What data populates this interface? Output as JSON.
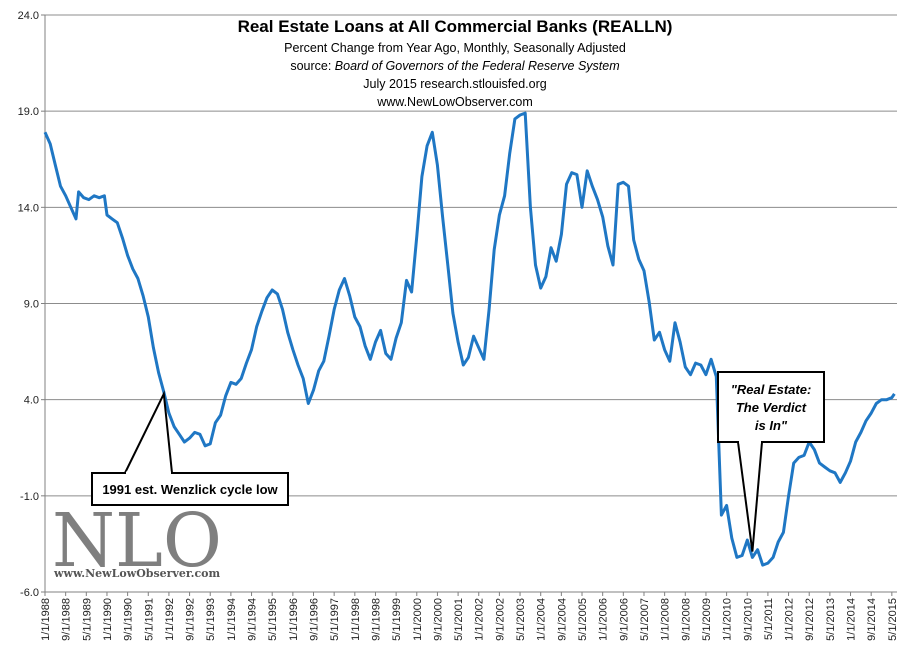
{
  "chart_data": {
    "type": "line",
    "title": "Real Estate Loans at All Commercial Banks (REALLN)",
    "subtitle_lines": [
      "Percent Change from Year Ago, Monthly, Seasonally Adjusted",
      "source: Board of Governors of the Federal Reserve System",
      "July 2015  research.stlouisfed.org",
      "www.NewLowObserver.com"
    ],
    "source_prefix": "source: ",
    "source_italic": "Board of Governors of the Federal Reserve System",
    "ylim": [
      -6.0,
      24.0
    ],
    "y_ticks": [
      "24.0",
      "19.0",
      "14.0",
      "9.0",
      "4.0",
      "-1.0",
      "-6.0"
    ],
    "x_ticks": [
      "1/1/1988",
      "9/1/1988",
      "5/1/1989",
      "1/1/1990",
      "9/1/1990",
      "5/1/1991",
      "1/1/1992",
      "9/1/1992",
      "5/1/1993",
      "1/1/1994",
      "9/1/1994",
      "5/1/1995",
      "1/1/1996",
      "9/1/1996",
      "5/1/1997",
      "1/1/1998",
      "9/1/1998",
      "5/1/1999",
      "1/1/2000",
      "9/1/2000",
      "5/1/2001",
      "1/1/2002",
      "9/1/2002",
      "5/1/2003",
      "1/1/2004",
      "9/1/2004",
      "5/1/2005",
      "1/1/2006",
      "9/1/2006",
      "5/1/2007",
      "1/1/2008",
      "9/1/2008",
      "5/1/2009",
      "1/1/2010",
      "9/1/2010",
      "5/1/2011",
      "1/1/2012",
      "9/1/2012",
      "5/1/2013",
      "1/1/2014",
      "9/1/2014",
      "5/1/2015"
    ],
    "grid": true,
    "line_color": "#1f77c4",
    "series": [
      {
        "points": [
          [
            "1988-01",
            17.9
          ],
          [
            "1988-03",
            17.3
          ],
          [
            "1988-05",
            16.2
          ],
          [
            "1988-07",
            15.1
          ],
          [
            "1988-09",
            14.6
          ],
          [
            "1988-11",
            14.0
          ],
          [
            "1989-01",
            13.4
          ],
          [
            "1989-02",
            14.8
          ],
          [
            "1989-04",
            14.5
          ],
          [
            "1989-06",
            14.4
          ],
          [
            "1989-08",
            14.6
          ],
          [
            "1989-10",
            14.5
          ],
          [
            "1989-12",
            14.6
          ],
          [
            "1990-01",
            13.6
          ],
          [
            "1990-03",
            13.4
          ],
          [
            "1990-05",
            13.2
          ],
          [
            "1990-07",
            12.4
          ],
          [
            "1990-09",
            11.5
          ],
          [
            "1990-11",
            10.8
          ],
          [
            "1991-01",
            10.3
          ],
          [
            "1991-03",
            9.4
          ],
          [
            "1991-05",
            8.3
          ],
          [
            "1991-07",
            6.7
          ],
          [
            "1991-09",
            5.4
          ],
          [
            "1991-11",
            4.4
          ],
          [
            "1992-01",
            3.3
          ],
          [
            "1992-03",
            2.6
          ],
          [
            "1992-05",
            2.2
          ],
          [
            "1992-07",
            1.8
          ],
          [
            "1992-09",
            2.0
          ],
          [
            "1992-11",
            2.3
          ],
          [
            "1993-01",
            2.2
          ],
          [
            "1993-03",
            1.6
          ],
          [
            "1993-05",
            1.7
          ],
          [
            "1993-07",
            2.8
          ],
          [
            "1993-09",
            3.2
          ],
          [
            "1993-11",
            4.2
          ],
          [
            "1994-01",
            4.9
          ],
          [
            "1994-03",
            4.8
          ],
          [
            "1994-05",
            5.1
          ],
          [
            "1994-07",
            5.9
          ],
          [
            "1994-09",
            6.6
          ],
          [
            "1994-11",
            7.8
          ],
          [
            "1995-01",
            8.6
          ],
          [
            "1995-03",
            9.3
          ],
          [
            "1995-05",
            9.7
          ],
          [
            "1995-07",
            9.5
          ],
          [
            "1995-09",
            8.7
          ],
          [
            "1995-11",
            7.5
          ],
          [
            "1996-01",
            6.6
          ],
          [
            "1996-03",
            5.8
          ],
          [
            "1996-05",
            5.1
          ],
          [
            "1996-07",
            3.8
          ],
          [
            "1996-09",
            4.5
          ],
          [
            "1996-11",
            5.5
          ],
          [
            "1997-01",
            6.0
          ],
          [
            "1997-03",
            7.3
          ],
          [
            "1997-05",
            8.7
          ],
          [
            "1997-07",
            9.7
          ],
          [
            "1997-09",
            10.3
          ],
          [
            "1997-11",
            9.4
          ],
          [
            "1998-01",
            8.3
          ],
          [
            "1998-03",
            7.8
          ],
          [
            "1998-05",
            6.8
          ],
          [
            "1998-07",
            6.1
          ],
          [
            "1998-09",
            7.0
          ],
          [
            "1998-11",
            7.6
          ],
          [
            "1999-01",
            6.4
          ],
          [
            "1999-03",
            6.1
          ],
          [
            "1999-05",
            7.2
          ],
          [
            "1999-07",
            8.0
          ],
          [
            "1999-09",
            10.2
          ],
          [
            "1999-11",
            9.6
          ],
          [
            "2000-01",
            12.5
          ],
          [
            "2000-03",
            15.6
          ],
          [
            "2000-05",
            17.2
          ],
          [
            "2000-07",
            17.9
          ],
          [
            "2000-09",
            16.2
          ],
          [
            "2000-11",
            13.5
          ],
          [
            "2001-01",
            11.0
          ],
          [
            "2001-03",
            8.5
          ],
          [
            "2001-05",
            7.0
          ],
          [
            "2001-07",
            5.8
          ],
          [
            "2001-09",
            6.2
          ],
          [
            "2001-11",
            7.3
          ],
          [
            "2002-01",
            6.7
          ],
          [
            "2002-03",
            6.1
          ],
          [
            "2002-05",
            8.7
          ],
          [
            "2002-07",
            11.8
          ],
          [
            "2002-09",
            13.6
          ],
          [
            "2002-11",
            14.6
          ],
          [
            "2003-01",
            16.8
          ],
          [
            "2003-03",
            18.6
          ],
          [
            "2003-05",
            18.8
          ],
          [
            "2003-07",
            18.9
          ],
          [
            "2003-09",
            14.0
          ],
          [
            "2003-11",
            11.0
          ],
          [
            "2004-01",
            9.8
          ],
          [
            "2004-03",
            10.4
          ],
          [
            "2004-05",
            11.9
          ],
          [
            "2004-07",
            11.2
          ],
          [
            "2004-09",
            12.6
          ],
          [
            "2004-11",
            15.2
          ],
          [
            "2005-01",
            15.8
          ],
          [
            "2005-03",
            15.7
          ],
          [
            "2005-05",
            14.0
          ],
          [
            "2005-07",
            15.9
          ],
          [
            "2005-09",
            15.1
          ],
          [
            "2005-11",
            14.4
          ],
          [
            "2006-01",
            13.5
          ],
          [
            "2006-03",
            12.0
          ],
          [
            "2006-05",
            11.0
          ],
          [
            "2006-07",
            15.2
          ],
          [
            "2006-09",
            15.3
          ],
          [
            "2006-11",
            15.1
          ],
          [
            "2007-01",
            12.3
          ],
          [
            "2007-03",
            11.3
          ],
          [
            "2007-05",
            10.7
          ],
          [
            "2007-07",
            9.1
          ],
          [
            "2007-09",
            7.1
          ],
          [
            "2007-11",
            7.5
          ],
          [
            "2008-01",
            6.6
          ],
          [
            "2008-03",
            6.0
          ],
          [
            "2008-05",
            8.0
          ],
          [
            "2008-07",
            7.0
          ],
          [
            "2008-09",
            5.7
          ],
          [
            "2008-11",
            5.3
          ],
          [
            "2009-01",
            5.9
          ],
          [
            "2009-03",
            5.8
          ],
          [
            "2009-05",
            5.3
          ],
          [
            "2009-07",
            6.1
          ],
          [
            "2009-09",
            5.2
          ],
          [
            "2009-11",
            -2.0
          ],
          [
            "2010-01",
            -1.5
          ],
          [
            "2010-03",
            -3.2
          ],
          [
            "2010-05",
            -4.2
          ],
          [
            "2010-07",
            -4.1
          ],
          [
            "2010-09",
            -3.3
          ],
          [
            "2010-11",
            -4.2
          ],
          [
            "2011-01",
            -3.8
          ],
          [
            "2011-03",
            -4.6
          ],
          [
            "2011-05",
            -4.5
          ],
          [
            "2011-07",
            -4.2
          ],
          [
            "2011-09",
            -3.4
          ],
          [
            "2011-11",
            -2.9
          ],
          [
            "2012-01",
            -1.0
          ],
          [
            "2012-03",
            0.7
          ],
          [
            "2012-05",
            1.0
          ],
          [
            "2012-07",
            1.1
          ],
          [
            "2012-09",
            1.8
          ],
          [
            "2012-11",
            1.4
          ],
          [
            "2013-01",
            0.7
          ],
          [
            "2013-03",
            0.5
          ],
          [
            "2013-05",
            0.3
          ],
          [
            "2013-07",
            0.2
          ],
          [
            "2013-09",
            -0.3
          ],
          [
            "2013-11",
            0.2
          ],
          [
            "2014-01",
            0.8
          ],
          [
            "2014-03",
            1.8
          ],
          [
            "2014-05",
            2.3
          ],
          [
            "2014-07",
            2.9
          ],
          [
            "2014-09",
            3.3
          ],
          [
            "2014-11",
            3.8
          ],
          [
            "2015-01",
            4.0
          ],
          [
            "2015-03",
            4.0
          ],
          [
            "2015-05",
            4.1
          ],
          [
            "2015-06",
            4.3
          ]
        ]
      }
    ],
    "annotations": [
      {
        "text_lines": [
          "1991 est. Wenzlick cycle low"
        ],
        "bold": true,
        "italic": false,
        "point": [
          "1991-11",
          4.3
        ]
      },
      {
        "text_lines": [
          "\"Real Estate:",
          "The Verdict",
          "is In\""
        ],
        "bold": true,
        "italic": true,
        "point": [
          "2010-11",
          -3.9
        ]
      }
    ]
  },
  "watermark": {
    "logo_text": "NLO",
    "url_text": "www.NewLowObserver.com"
  }
}
